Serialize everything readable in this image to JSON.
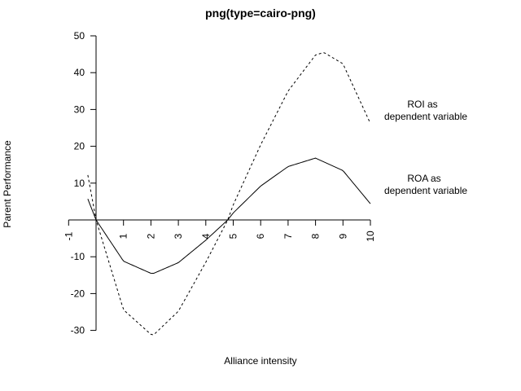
{
  "chart_data": {
    "type": "line",
    "title": "png(type=cairo-png)",
    "xlabel": "Alliance intensity",
    "ylabel": "Parent Performance",
    "xlim": [
      -1,
      10
    ],
    "ylim": [
      -30,
      50
    ],
    "grid": false,
    "x_ticks": [
      "-1",
      "1",
      "2",
      "3",
      "4",
      "5",
      "6",
      "7",
      "8",
      "9",
      "10"
    ],
    "y_ticks": [
      "50",
      "40",
      "30",
      "20",
      "10",
      "-10",
      "-20",
      "-30"
    ],
    "series": [
      {
        "name": "ROA",
        "line_style": "solid",
        "color": "#000000",
        "x": [
          -0.3,
          0,
          1,
          2,
          2.1,
          3,
          4,
          4.8,
          5,
          6,
          7,
          8,
          9,
          10
        ],
        "y": [
          5.7,
          0,
          -11.2,
          -14.5,
          -14.5,
          -11.6,
          -5.5,
          0,
          1.9,
          9.2,
          14.5,
          16.8,
          13.4,
          4.4
        ]
      },
      {
        "name": "ROI",
        "line_style": "dashed",
        "color": "#000000",
        "x": [
          -0.3,
          0,
          1,
          2,
          2.1,
          3,
          4,
          4.8,
          5,
          6,
          7,
          8,
          8.3,
          9,
          10
        ],
        "y": [
          12.2,
          0,
          -24.4,
          -31.1,
          -31.2,
          -24.8,
          -11.5,
          0,
          4.1,
          20.4,
          35.0,
          44.8,
          45.5,
          42.4,
          26.2
        ]
      }
    ],
    "annotations": [
      {
        "id": "roi",
        "lines": [
          "ROI as",
          "dependent variable"
        ]
      },
      {
        "id": "roa",
        "lines": [
          "ROA as",
          "dependent variable"
        ]
      }
    ]
  }
}
